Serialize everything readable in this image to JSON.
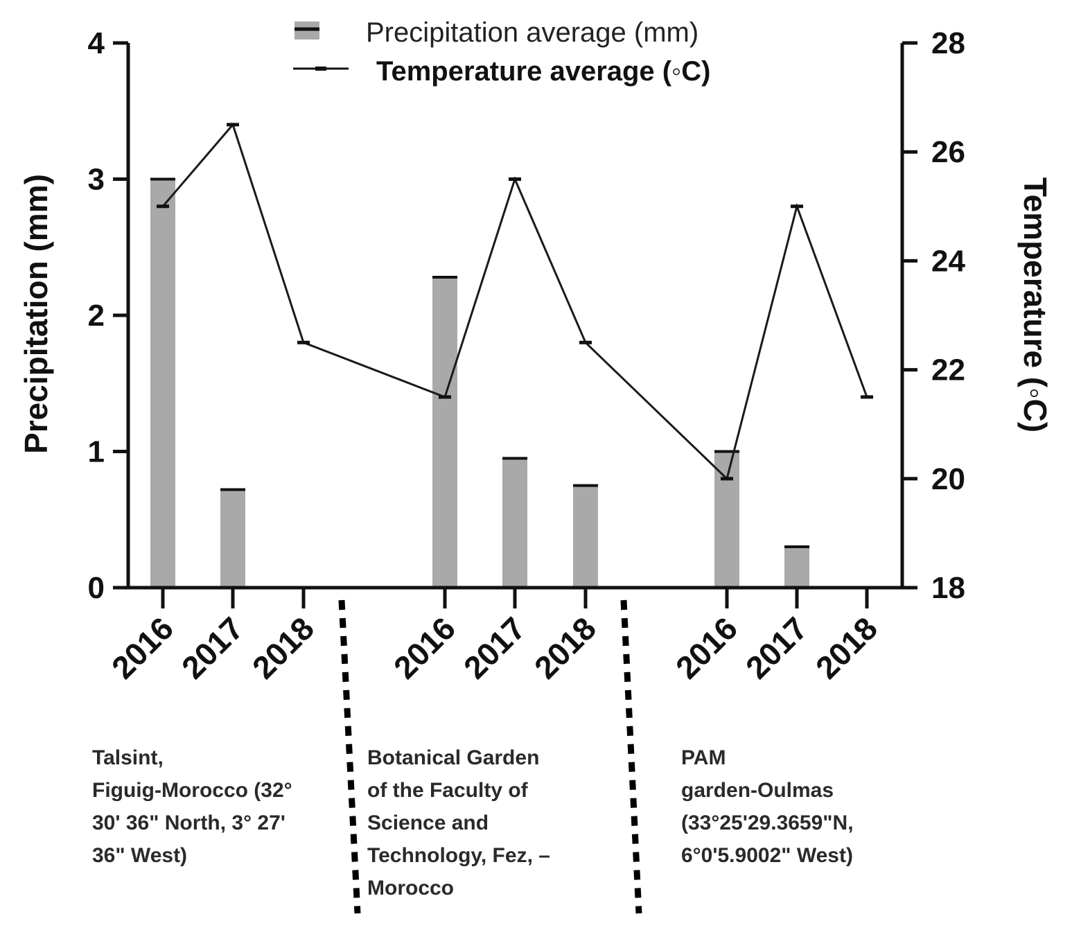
{
  "chart_data": {
    "type": "bar+line",
    "categories": [
      "2016",
      "2017",
      "2018",
      "2016",
      "2017",
      "2018",
      "2016",
      "2017",
      "2018"
    ],
    "groups": [
      {
        "label": "Talsint,\nFiguig-Morocco (32°\n30' 36\" North, 3° 27'\n36\" West)",
        "years": [
          "2016",
          "2017",
          "2018"
        ]
      },
      {
        "label": "Botanical Garden\nof the Faculty of\nScience and\nTechnology, Fez, –\nMorocco",
        "years": [
          "2016",
          "2017",
          "2018"
        ]
      },
      {
        "label": "PAM\ngarden-Oulmas\n(33°25'29.3659\"N,\n6°0'5.9002\" West)",
        "years": [
          "2016",
          "2017",
          "2018"
        ]
      }
    ],
    "series": [
      {
        "name": "Precipitation average (mm)",
        "type": "bar",
        "axis": "left",
        "color": "#a9a9a9",
        "values": [
          3.0,
          0.72,
          0,
          2.28,
          0.95,
          0.75,
          1.0,
          0.3,
          0
        ]
      },
      {
        "name": "Temperature average (◦C)",
        "type": "line",
        "axis": "right",
        "color": "#1a1a1a",
        "values": [
          25.0,
          26.5,
          22.5,
          21.5,
          25.5,
          22.5,
          20.0,
          25.0,
          21.5
        ]
      }
    ],
    "ylabel": "Precipitation  (mm)",
    "ylim": [
      0,
      4
    ],
    "yticks": [
      0,
      1,
      2,
      3,
      4
    ],
    "y2label": "Temperature (◦C)",
    "y2lim": [
      18,
      28
    ],
    "y2ticks": [
      18,
      20,
      22,
      24,
      26,
      28
    ],
    "legend_position": "top-center"
  }
}
